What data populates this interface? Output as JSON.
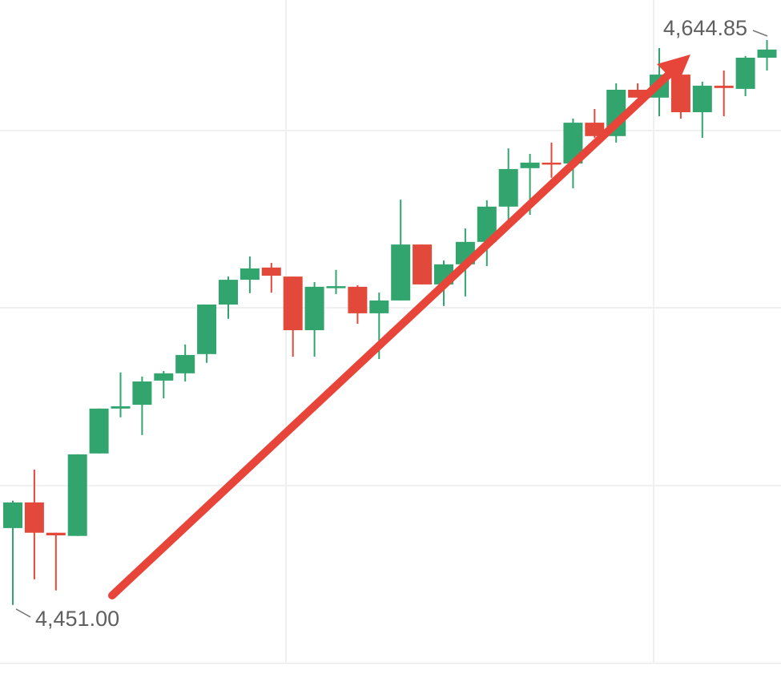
{
  "chart_data": {
    "type": "candlestick",
    "ylim": [
      4428.7,
      4658.6
    ],
    "yticks": [
      4613.8,
      4553.0,
      4492.0,
      4431.0
    ],
    "grid": true,
    "up_color": "#32a56f",
    "down_color": "#e2493b",
    "open": [
      4477.4,
      4486.2,
      4475.8,
      4474.7,
      4503.0,
      4518.4,
      4519.7,
      4528.0,
      4530.5,
      4537.1,
      4554.1,
      4562.6,
      4566.8,
      4563.7,
      4545.3,
      4560.2,
      4560.2,
      4551.1,
      4555.5,
      4574.7,
      4561.0,
      4567.9,
      4575.6,
      4587.7,
      4600.9,
      4602.8,
      4602.5,
      4616.5,
      4611.9,
      4627.8,
      4625.1,
      4633.0,
      4620.1,
      4629.2,
      4628.1,
      4638.8
    ],
    "high": [
      4486.8,
      4497.5,
      4475.8,
      4502.7,
      4518.4,
      4530.8,
      4529.4,
      4531.3,
      4540.4,
      4554.1,
      4563.7,
      4570.6,
      4568.4,
      4563.7,
      4561.8,
      4566.0,
      4560.7,
      4558.2,
      4590.1,
      4574.7,
      4569.2,
      4580.2,
      4589.9,
      4607.7,
      4605.8,
      4609.7,
      4617.9,
      4621.2,
      4630.0,
      4630.0,
      4642.1,
      4636.6,
      4630.6,
      4634.4,
      4639.4,
      4644.85
    ],
    "low": [
      4451.0,
      4459.8,
      4456.0,
      4474.7,
      4503.0,
      4515.4,
      4509.3,
      4521.9,
      4527.7,
      4534.1,
      4549.2,
      4558.0,
      4558.2,
      4536.2,
      4536.2,
      4557.7,
      4547.5,
      4535.4,
      4555.5,
      4561.0,
      4553.6,
      4556.9,
      4567.3,
      4581.6,
      4584.9,
      4597.6,
      4594.0,
      4611.3,
      4609.7,
      4625.1,
      4618.7,
      4617.9,
      4611.3,
      4618.7,
      4625.6,
      4634.4
    ],
    "close": [
      4486.2,
      4475.8,
      4474.9,
      4502.7,
      4518.4,
      4519.2,
      4527.7,
      4530.5,
      4536.8,
      4554.1,
      4562.6,
      4566.5,
      4564.0,
      4545.3,
      4560.2,
      4560.4,
      4551.1,
      4555.5,
      4574.7,
      4561.0,
      4567.9,
      4575.6,
      4587.7,
      4600.6,
      4602.8,
      4602.5,
      4616.5,
      4611.9,
      4627.8,
      4625.1,
      4633.0,
      4620.1,
      4629.2,
      4628.4,
      4638.8,
      4641.6
    ],
    "annotations": [
      {
        "value": 4644.85,
        "label": "4,644.85"
      },
      {
        "value": 4451.0,
        "label": "4,451.00"
      }
    ]
  }
}
